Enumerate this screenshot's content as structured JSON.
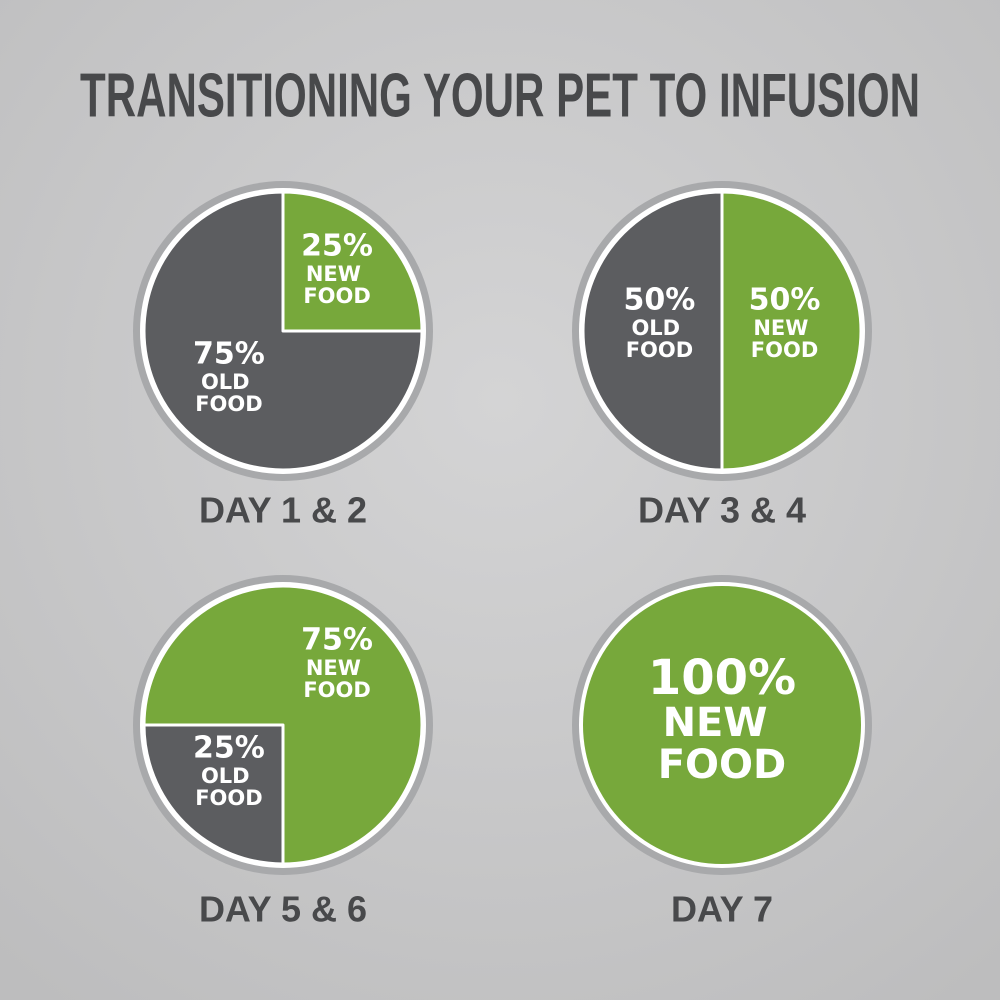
{
  "title": "TRANSITIONING YOUR PET TO INFUSION",
  "chart_data": [
    {
      "type": "pie",
      "title": "DAY 1 & 2",
      "start_angle": 0,
      "categories": [
        "NEW FOOD",
        "OLD FOOD"
      ],
      "values": [
        25,
        75
      ],
      "value_labels": [
        "25%",
        "75%"
      ],
      "colors": [
        "#77a83b",
        "#5c5d60"
      ]
    },
    {
      "type": "pie",
      "title": "DAY 3 & 4",
      "start_angle": 0,
      "categories": [
        "NEW FOOD",
        "OLD FOOD"
      ],
      "values": [
        50,
        50
      ],
      "value_labels": [
        "50%",
        "50%"
      ],
      "colors": [
        "#77a83b",
        "#5c5d60"
      ]
    },
    {
      "type": "pie",
      "title": "DAY 5 & 6",
      "start_angle": 180,
      "categories": [
        "OLD FOOD",
        "NEW FOOD"
      ],
      "values": [
        25,
        75
      ],
      "value_labels": [
        "25%",
        "75%"
      ],
      "colors": [
        "#5c5d60",
        "#77a83b"
      ]
    },
    {
      "type": "pie",
      "title": "DAY 7",
      "start_angle": 0,
      "categories": [
        "NEW FOOD"
      ],
      "values": [
        100
      ],
      "value_labels": [
        "100%"
      ],
      "colors": [
        "#77a83b"
      ]
    }
  ]
}
